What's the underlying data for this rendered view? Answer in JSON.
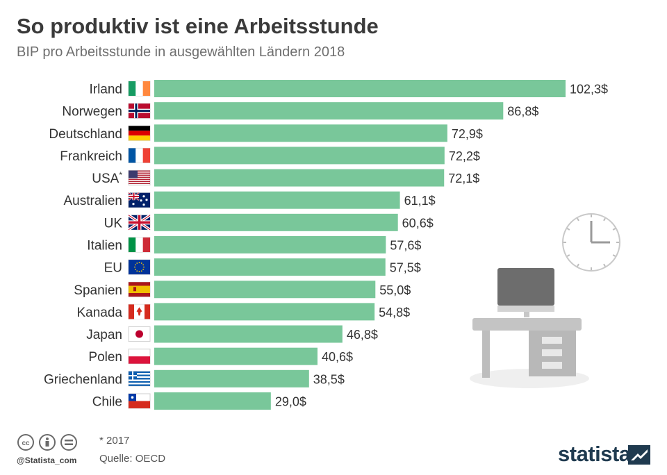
{
  "title": "So produktiv ist eine Arbeitsstunde",
  "subtitle": "BIP pro Arbeitsstunde in ausgewählten Ländern 2018",
  "footnote": "* 2017",
  "source": "Quelle: OECD",
  "handle": "@Statista_com",
  "logo_text": "statista",
  "colors": {
    "bar": "#79c79a",
    "title": "#3a3a3a",
    "subtitle": "#6f6f6f",
    "logo": "#1f3a4f"
  },
  "icons": [
    "creative-commons-icon",
    "attribution-icon",
    "no-derivatives-icon",
    "statista-logo-icon",
    "clock-illustration",
    "desk-illustration"
  ],
  "chart_data": {
    "type": "bar",
    "orientation": "horizontal",
    "categories": [
      "Irland",
      "Norwegen",
      "Deutschland",
      "Frankreich",
      "USA*",
      "Australien",
      "UK",
      "Italien",
      "EU",
      "Spanien",
      "Kanada",
      "Japan",
      "Polen",
      "Griechenland",
      "Chile"
    ],
    "values": [
      102.3,
      86.8,
      72.9,
      72.2,
      72.1,
      61.1,
      60.6,
      57.6,
      57.5,
      55.0,
      54.8,
      46.8,
      40.6,
      38.5,
      29.0
    ],
    "value_labels": [
      "102,3$",
      "86,8$",
      "72,9$",
      "72,2$",
      "72,1$",
      "61,1$",
      "60,6$",
      "57,6$",
      "57,5$",
      "55,0$",
      "54,8$",
      "46,8$",
      "40,6$",
      "38,5$",
      "29,0$"
    ],
    "flags": [
      "ireland-flag-icon",
      "norway-flag-icon",
      "germany-flag-icon",
      "france-flag-icon",
      "usa-flag-icon",
      "australia-flag-icon",
      "uk-flag-icon",
      "italy-flag-icon",
      "eu-flag-icon",
      "spain-flag-icon",
      "canada-flag-icon",
      "japan-flag-icon",
      "poland-flag-icon",
      "greece-flag-icon",
      "chile-flag-icon"
    ],
    "xlim": [
      0,
      102.3
    ],
    "grid": false,
    "legend": "none"
  }
}
